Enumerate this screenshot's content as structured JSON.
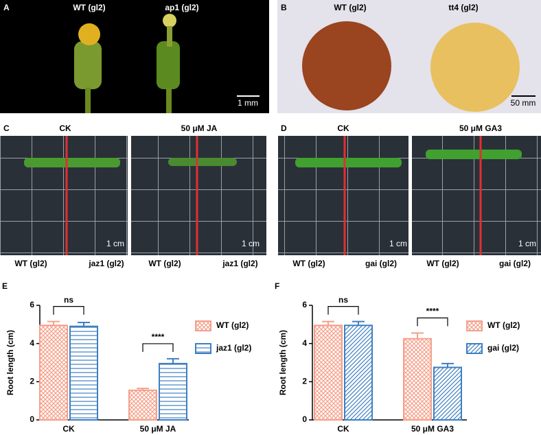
{
  "panels": [
    {
      "letter": "A",
      "labels": [
        "WT (gl2)",
        "ap1 (gl2)"
      ],
      "scale": "1 mm"
    },
    {
      "letter": "B",
      "labels": [
        "WT (gl2)",
        "tt4 (gl2)"
      ],
      "scale": "50 mm"
    },
    {
      "letter": "C",
      "conditions": [
        "CK",
        "50 μM JA"
      ],
      "labels": [
        "WT (gl2)",
        "jaz1 (gl2)",
        "WT (gl2)",
        "jaz1 (gl2)"
      ],
      "scales": [
        "1 cm",
        "1 cm"
      ]
    },
    {
      "letter": "D",
      "conditions": [
        "CK",
        "50 μM GA3"
      ],
      "labels": [
        "WT (gl2)",
        "gai (gl2)",
        "WT (gl2)",
        "gai (gl2)"
      ],
      "scales": [
        "1 cm",
        "1 cm"
      ]
    }
  ],
  "chart_data": [
    {
      "type": "bar",
      "panel": "E",
      "y_label": "Root length (cm)",
      "categories": [
        "CK",
        "50 μM JA"
      ],
      "series": [
        {
          "name": "WT (gl2)",
          "color": "#f4a08a",
          "hatch": "cross",
          "values": [
            4.95,
            1.55
          ],
          "errors": [
            0.2,
            0.1
          ]
        },
        {
          "name": "jaz1 (gl2)",
          "color": "#3d7fc1",
          "hatch": "horizontal",
          "values": [
            4.9,
            2.95
          ],
          "errors": [
            0.2,
            0.25
          ]
        }
      ],
      "annotations": [
        "ns",
        "****"
      ],
      "ylim": [
        0,
        6
      ],
      "yticks": [
        0,
        2,
        4,
        6
      ]
    },
    {
      "type": "bar",
      "panel": "F",
      "y_label": "Root length (cm)",
      "categories": [
        "CK",
        "50 μM GA3"
      ],
      "series": [
        {
          "name": "WT (gl2)",
          "color": "#f4a08a",
          "hatch": "cross",
          "values": [
            4.95,
            4.25
          ],
          "errors": [
            0.2,
            0.3
          ]
        },
        {
          "name": "gai (gl2)",
          "color": "#3d7fc1",
          "hatch": "diagonal",
          "values": [
            4.95,
            2.75
          ],
          "errors": [
            0.2,
            0.2
          ]
        }
      ],
      "annotations": [
        "ns",
        "****"
      ],
      "ylim": [
        0,
        6
      ],
      "yticks": [
        0,
        2,
        4,
        6
      ]
    }
  ]
}
